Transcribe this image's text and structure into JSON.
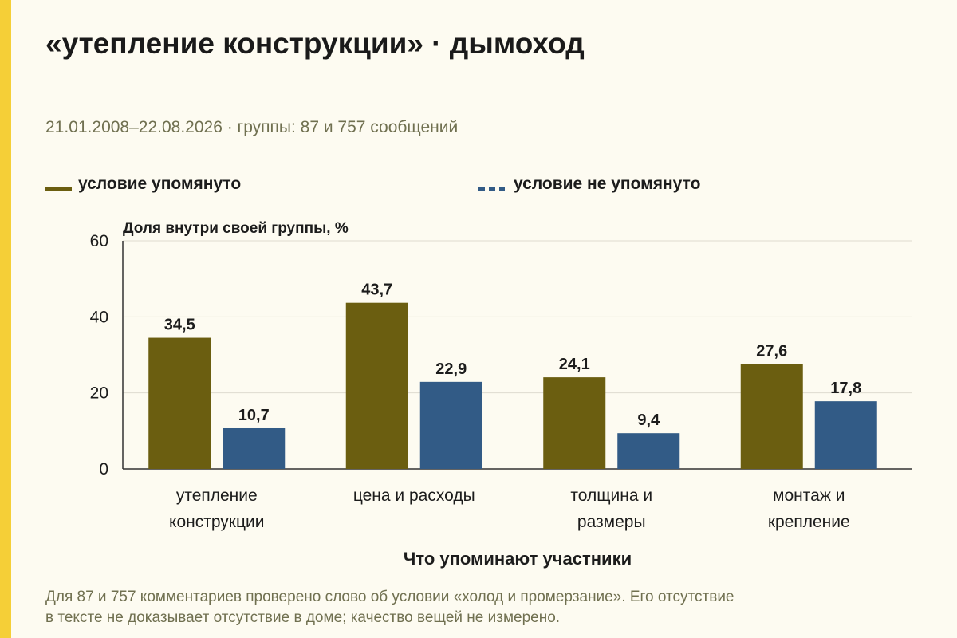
{
  "title": "«утепление конструкции» · дымоход",
  "subtitle": "21.01.2008–22.08.2026 · группы: 87 и 757 сообщений",
  "note": {
    "line1": "Для 87 и 757 комментариев проверено слово об условии «холод и промерзание». Его отсутствие",
    "line2": "в тексте не доказывает отсутствие в доме; качество вещей не измерено."
  },
  "colors": {
    "accent_strip": "#f5cf37",
    "series_mentioned": "#6b5e10",
    "series_not_mentioned": "#325b86",
    "background": "#fdfbf1"
  },
  "chart_data": {
    "type": "bar",
    "ylabel": "Доля внутри своей группы, %",
    "xlabel": "Что упоминают участники",
    "ylim": [
      0,
      60
    ],
    "yticks": [
      0,
      20,
      40,
      60
    ],
    "grid": true,
    "legend_position": "top",
    "categories": [
      [
        "утепление",
        "конструкции"
      ],
      [
        "цена и расходы"
      ],
      [
        "толщина и",
        "размеры"
      ],
      [
        "монтаж и",
        "крепление"
      ]
    ],
    "series": [
      {
        "name": "условие упомянуто",
        "values": [
          34.5,
          43.7,
          24.1,
          27.6
        ],
        "labels": [
          "34,5",
          "43,7",
          "24,1",
          "27,6"
        ]
      },
      {
        "name": "условие не упомянуто",
        "values": [
          10.7,
          22.9,
          9.4,
          17.8
        ],
        "labels": [
          "10,7",
          "22,9",
          "9,4",
          "17,8"
        ]
      }
    ]
  }
}
